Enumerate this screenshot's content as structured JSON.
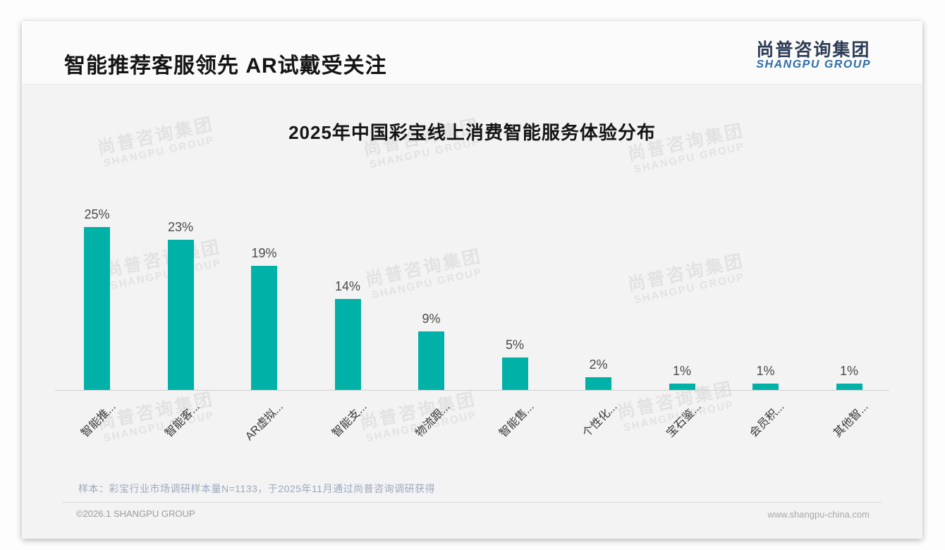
{
  "page_title": "智能推荐客服领先 AR试戴受关注",
  "logo": {
    "cn": "尚普咨询集团",
    "en": "SHANGPU GROUP"
  },
  "watermark": {
    "cn": "尚普咨询集团",
    "en": "SHANGPU GROUP"
  },
  "chart_data": {
    "type": "bar",
    "title": "2025年中国彩宝线上消费智能服务体验分布",
    "categories": [
      "智能推...",
      "智能客...",
      "AR虚拟...",
      "智能支...",
      "物流跟...",
      "智能售...",
      "个性化...",
      "宝石鉴...",
      "会员积...",
      "其他智..."
    ],
    "values": [
      25,
      23,
      19,
      14,
      9,
      5,
      2,
      1,
      1,
      1
    ],
    "data_labels": [
      "25%",
      "23%",
      "19%",
      "14%",
      "9%",
      "5%",
      "2%",
      "1%",
      "1%",
      "1%"
    ],
    "unit": "%",
    "bar_color": "#00B1A8",
    "ylim": [
      0,
      27
    ],
    "grid": false,
    "legend": null,
    "x_label_rotation": 45
  },
  "source_note": "样本：彩宝行业市场调研样本量N=1133，于2025年11月通过尚普咨询调研获得",
  "footer": {
    "left": "©2026.1 SHANGPU GROUP",
    "right": "www.shangpu-china.com"
  }
}
